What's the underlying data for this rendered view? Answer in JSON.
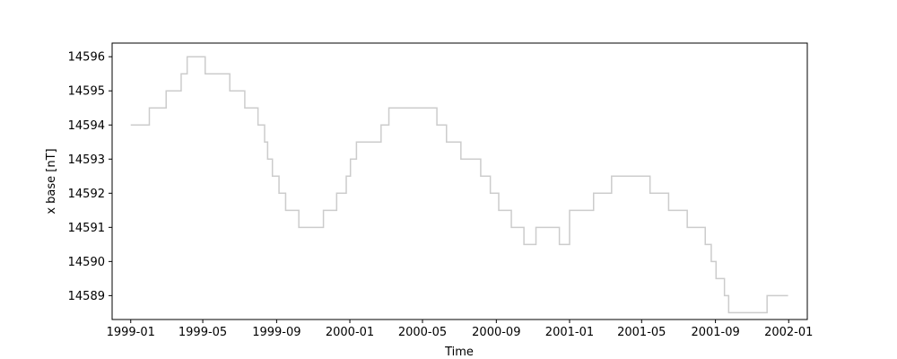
{
  "chart_data": {
    "type": "line",
    "title": "",
    "xlabel": "Time",
    "ylabel": "x base [nT]",
    "xlim": [
      "1998-12-01",
      "2002-02-01"
    ],
    "ylim": [
      14588.3,
      14596.4
    ],
    "grid": false,
    "line_color": "#cccccc",
    "x_tick_labels": [
      "1999-01",
      "1999-05",
      "1999-09",
      "2000-01",
      "2000-05",
      "2000-09",
      "2001-01",
      "2001-05",
      "2001-09",
      "2002-01"
    ],
    "y_ticks": [
      14589,
      14590,
      14591,
      14592,
      14593,
      14594,
      14595,
      14596
    ],
    "series": [
      {
        "step": "post",
        "x": [
          "1999-01-01",
          "1999-02-01",
          "1999-03-01",
          "1999-03-26",
          "1999-04-05",
          "1999-05-05",
          "1999-06-15",
          "1999-07-10",
          "1999-08-01",
          "1999-08-12",
          "1999-08-17",
          "1999-08-25",
          "1999-09-05",
          "1999-09-16",
          "1999-10-08",
          "1999-11-18",
          "1999-12-10",
          "1999-12-26",
          "2000-01-02",
          "2000-01-12",
          "2000-02-22",
          "2000-03-06",
          "2000-05-25",
          "2000-06-10",
          "2000-07-04",
          "2000-08-06",
          "2000-08-22",
          "2000-09-05",
          "2000-09-26",
          "2000-10-17",
          "2000-11-06",
          "2000-12-15",
          "2001-01-01",
          "2001-02-10",
          "2001-03-12",
          "2001-05-15",
          "2001-06-15",
          "2001-07-16",
          "2001-08-15",
          "2001-08-25",
          "2001-09-02",
          "2001-09-16",
          "2001-09-23",
          "2001-11-26",
          "2001-12-31"
        ],
        "y": [
          14594,
          14594.5,
          14595,
          14595.5,
          14596,
          14595.5,
          14595,
          14594.5,
          14594,
          14593.5,
          14593,
          14592.5,
          14592,
          14591.5,
          14591,
          14591.5,
          14592,
          14592.5,
          14593,
          14593.5,
          14594,
          14594.5,
          14594,
          14593.5,
          14593,
          14592.5,
          14592,
          14591.5,
          14591,
          14590.5,
          14591,
          14590.5,
          14591.5,
          14592,
          14592.5,
          14592,
          14591.5,
          14591,
          14590.5,
          14590,
          14589.5,
          14589,
          14588.5,
          14589,
          14589
        ]
      }
    ]
  }
}
